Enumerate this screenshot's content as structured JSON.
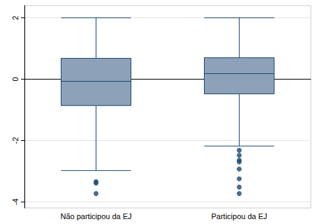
{
  "chart_data": {
    "type": "boxplot",
    "categories": [
      "Não participou da EJ",
      "Participou da EJ"
    ],
    "values": [
      [
        -2.98,
        -0.86,
        -0.07,
        0.68,
        2.0
      ],
      [
        -2.18,
        -0.48,
        0.18,
        0.7,
        2.0
      ]
    ],
    "outliers": [
      [
        -3.34,
        -3.39,
        -3.73
      ],
      [
        -2.32,
        -2.48,
        -2.64,
        -2.7,
        -2.93,
        -3.25,
        -3.52,
        -3.73
      ]
    ],
    "color": "#8da2b9",
    "ylim": [
      -4.2,
      2.4
    ],
    "yticks": [
      -4,
      -2,
      0,
      2
    ],
    "grid": true
  }
}
